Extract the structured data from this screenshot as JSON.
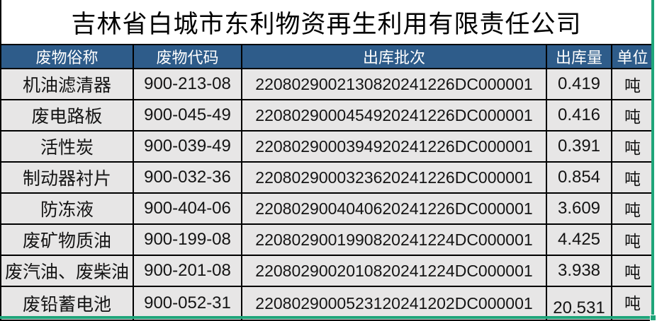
{
  "company_title": "吉林省白城市东利物资再生利用有限责任公司",
  "table": {
    "columns": [
      {
        "key": "name",
        "label": "废物俗称"
      },
      {
        "key": "code",
        "label": "废物代码"
      },
      {
        "key": "batch",
        "label": "出库批次"
      },
      {
        "key": "quantity",
        "label": "出库量"
      },
      {
        "key": "unit",
        "label": "单位"
      }
    ],
    "rows": [
      {
        "name": "机油滤清器",
        "code": "900-213-08",
        "batch": "2208029002130820241226DC000001",
        "quantity": "0.419",
        "unit": "吨"
      },
      {
        "name": "废电路板",
        "code": "900-045-49",
        "batch": "2208029000454920241226DC000001",
        "quantity": "0.416",
        "unit": "吨"
      },
      {
        "name": "活性炭",
        "code": "900-039-49",
        "batch": "2208029000394920241226DC000001",
        "quantity": "0.391",
        "unit": "吨"
      },
      {
        "name": "制动器衬片",
        "code": "900-032-36",
        "batch": "2208029000323620241226DC000001",
        "quantity": "0.854",
        "unit": "吨"
      },
      {
        "name": "防冻液",
        "code": "900-404-06",
        "batch": "2208029004040620241226DC000001",
        "quantity": "3.609",
        "unit": "吨"
      },
      {
        "name": "废矿物质油",
        "code": "900-199-08",
        "batch": "2208029001990820241224DC000001",
        "quantity": "4.425",
        "unit": "吨"
      },
      {
        "name": "废汽油、废柴油",
        "code": "900-201-08",
        "batch": "2208029002010820241224DC000001",
        "quantity": "3.938",
        "unit": "吨"
      },
      {
        "name": "废铅蓄电池",
        "code": "900-052-31",
        "batch": "2208029000523120241202DC000001",
        "quantity": "20.531",
        "unit": "吨"
      }
    ]
  },
  "colors": {
    "header_bg": "#2E5C8A",
    "header_text": "#FFFFFF",
    "row_bg": "#E7E6E6",
    "grid_border": "#000000",
    "selection_green": "#1FA57A",
    "title_text": "#000000"
  }
}
